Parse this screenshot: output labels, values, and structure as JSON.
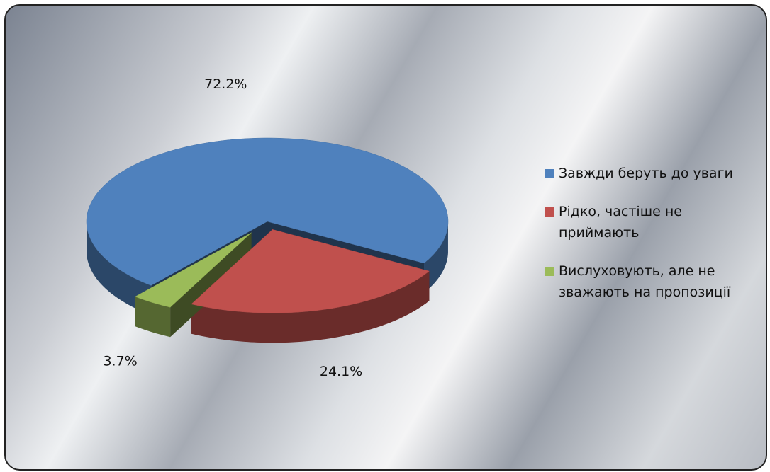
{
  "chart_data": {
    "type": "pie",
    "categories": [
      "Завжди беруть до уваги",
      "Рідко, частіше не приймають",
      "Вислуховують, але не зважають на пропозиції"
    ],
    "values": [
      72.2,
      24.1,
      3.7
    ],
    "value_labels": [
      "72.2%",
      "24.1%",
      "3.7%"
    ],
    "colors": [
      "#4f81bd",
      "#c0504d",
      "#9bbb59"
    ],
    "legend": "right"
  }
}
